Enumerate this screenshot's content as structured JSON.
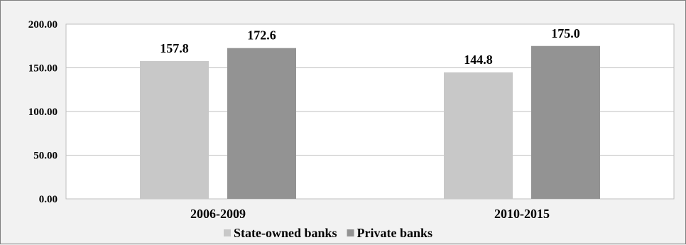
{
  "chart_data": {
    "type": "bar",
    "categories": [
      "2006-2009",
      "2010-2015"
    ],
    "series": [
      {
        "name": "State-owned banks",
        "values": [
          157.8,
          144.8
        ],
        "labels": [
          "157.8",
          "144.8"
        ],
        "color": "#c8c8c8"
      },
      {
        "name": "Private banks",
        "values": [
          172.6,
          175.0
        ],
        "labels": [
          "172.6",
          "175.0"
        ],
        "color": "#939393"
      }
    ],
    "y_ticks": [
      "0.00",
      "50.00",
      "100.00",
      "150.00",
      "200.00"
    ],
    "ylim": [
      0,
      200
    ],
    "grid": true,
    "legend_position": "bottom",
    "title": "",
    "xlabel": "",
    "ylabel": ""
  }
}
